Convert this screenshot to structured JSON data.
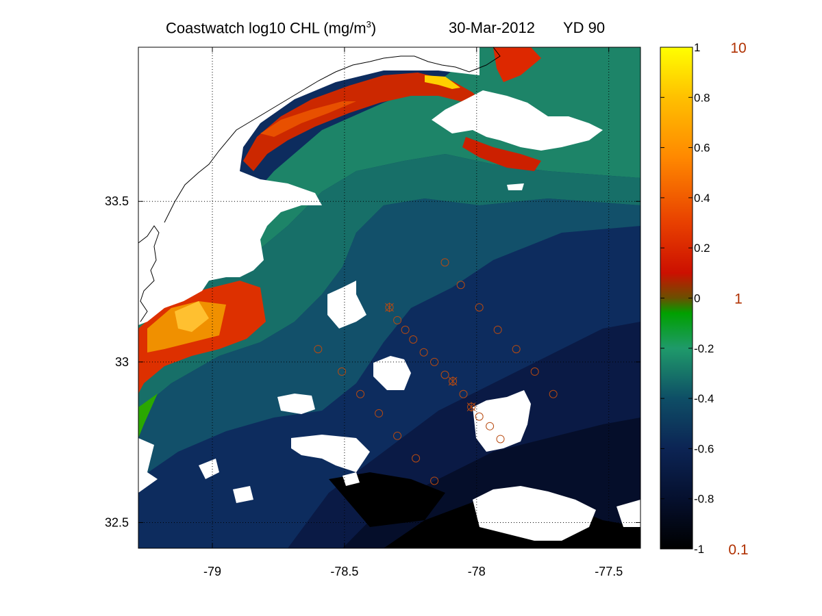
{
  "title": {
    "main_prefix": "Coastwatch  log10  CHL (mg/m",
    "main_sup": "3",
    "main_suffix": ")",
    "date": "30-Mar-2012",
    "yd": "YD 90"
  },
  "axes": {
    "x_ticks": [
      {
        "value": -79,
        "label": "-79"
      },
      {
        "value": -78.5,
        "label": "-78.5"
      },
      {
        "value": -78,
        "label": "-78"
      },
      {
        "value": -77.5,
        "label": "-77.5"
      }
    ],
    "y_ticks": [
      {
        "value": 33.5,
        "label": "33.5"
      },
      {
        "value": 33,
        "label": "33"
      },
      {
        "value": 32.5,
        "label": "32.5"
      }
    ],
    "xlim": [
      -79.28,
      -77.38
    ],
    "ylim": [
      32.42,
      33.98
    ],
    "grid": true
  },
  "colorbar": {
    "ticks": [
      "1",
      "0.8",
      "0.6",
      "0.4",
      "0.2",
      "0",
      "-0.2",
      "-0.4",
      "-0.6",
      "-0.8",
      "-1"
    ],
    "range": [
      -1,
      1
    ],
    "right_labels": [
      {
        "value": 1,
        "label": "10"
      },
      {
        "value": 0,
        "label": "1"
      },
      {
        "value": -1,
        "label": "0.1"
      }
    ],
    "right_label_color": "#b03000",
    "colormap": [
      "#000000",
      "#0c1a52",
      "#0e4e66",
      "#1f9a6a",
      "#00a000",
      "#cc1000",
      "#ff8800",
      "#ffff00"
    ]
  },
  "map_data": {
    "type": "map",
    "variable": "log10 CHL",
    "stations": [
      {
        "lon": -78.12,
        "lat": 33.31
      },
      {
        "lon": -78.06,
        "lat": 33.24
      },
      {
        "lon": -77.99,
        "lat": 33.17
      },
      {
        "lon": -77.92,
        "lat": 33.1
      },
      {
        "lon": -77.85,
        "lat": 33.04
      },
      {
        "lon": -77.78,
        "lat": 32.97
      },
      {
        "lon": -77.71,
        "lat": 32.9
      },
      {
        "lon": -78.33,
        "lat": 33.17,
        "marker": "cross"
      },
      {
        "lon": -78.3,
        "lat": 33.13
      },
      {
        "lon": -78.27,
        "lat": 33.1
      },
      {
        "lon": -78.24,
        "lat": 33.07
      },
      {
        "lon": -78.2,
        "lat": 33.03
      },
      {
        "lon": -78.16,
        "lat": 33.0
      },
      {
        "lon": -78.12,
        "lat": 32.96
      },
      {
        "lon": -78.09,
        "lat": 32.94,
        "marker": "cross"
      },
      {
        "lon": -78.05,
        "lat": 32.9
      },
      {
        "lon": -78.02,
        "lat": 32.86,
        "marker": "cross"
      },
      {
        "lon": -77.99,
        "lat": 32.83
      },
      {
        "lon": -77.95,
        "lat": 32.8
      },
      {
        "lon": -77.91,
        "lat": 32.76
      },
      {
        "lon": -78.6,
        "lat": 33.04
      },
      {
        "lon": -78.51,
        "lat": 32.97
      },
      {
        "lon": -78.44,
        "lat": 32.9
      },
      {
        "lon": -78.37,
        "lat": 32.84
      },
      {
        "lon": -78.3,
        "lat": 32.77
      },
      {
        "lon": -78.23,
        "lat": 32.7
      },
      {
        "lon": -78.16,
        "lat": 32.63
      }
    ],
    "station_color": "#b84a10"
  }
}
